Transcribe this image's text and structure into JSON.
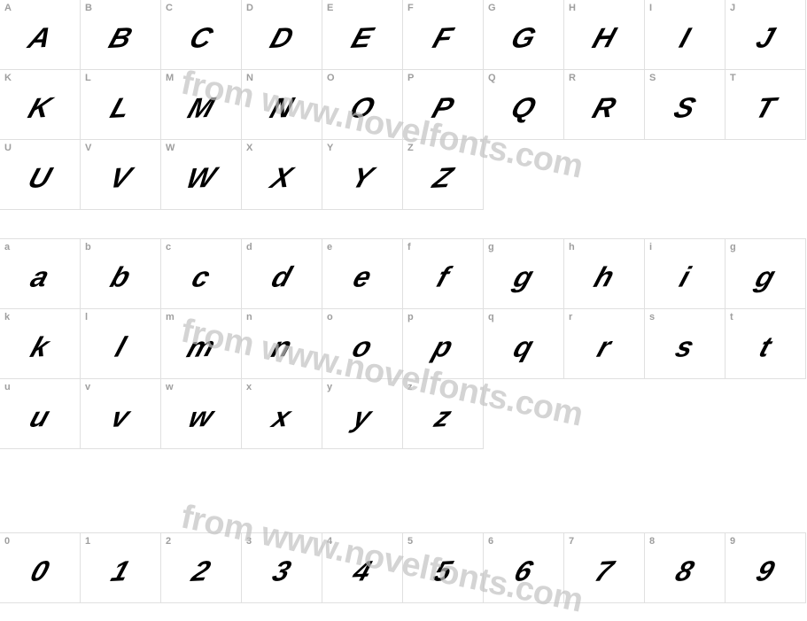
{
  "watermark_text": "from www.novelfonts.com",
  "upper_rows": [
    [
      "A",
      "B",
      "C",
      "D",
      "E",
      "F",
      "G",
      "H",
      "I",
      "J"
    ],
    [
      "K",
      "L",
      "M",
      "N",
      "O",
      "P",
      "Q",
      "R",
      "S",
      "T"
    ],
    [
      "U",
      "V",
      "W",
      "X",
      "Y",
      "Z",
      "",
      "",
      "",
      ""
    ]
  ],
  "lower_rows": [
    [
      "a",
      "b",
      "c",
      "d",
      "e",
      "f",
      "g",
      "h",
      "i",
      "g"
    ],
    [
      "k",
      "l",
      "m",
      "n",
      "o",
      "p",
      "q",
      "r",
      "s",
      "t"
    ],
    [
      "u",
      "v",
      "w",
      "x",
      "y",
      "z",
      "",
      "",
      "",
      ""
    ]
  ],
  "digit_row": [
    "0",
    "1",
    "2",
    "3",
    "4",
    "5",
    "6",
    "7",
    "8",
    "9"
  ],
  "colors": {
    "border": "#e0e0e0",
    "label": "#9e9e9e",
    "glyph": "#000000",
    "watermark": "#c2c2c2",
    "background": "#ffffff"
  },
  "cell_size": {
    "width": 91,
    "height": 80
  },
  "label_fontsize": 11,
  "glyph_fontsize": 32,
  "watermark_fontsize": 38
}
